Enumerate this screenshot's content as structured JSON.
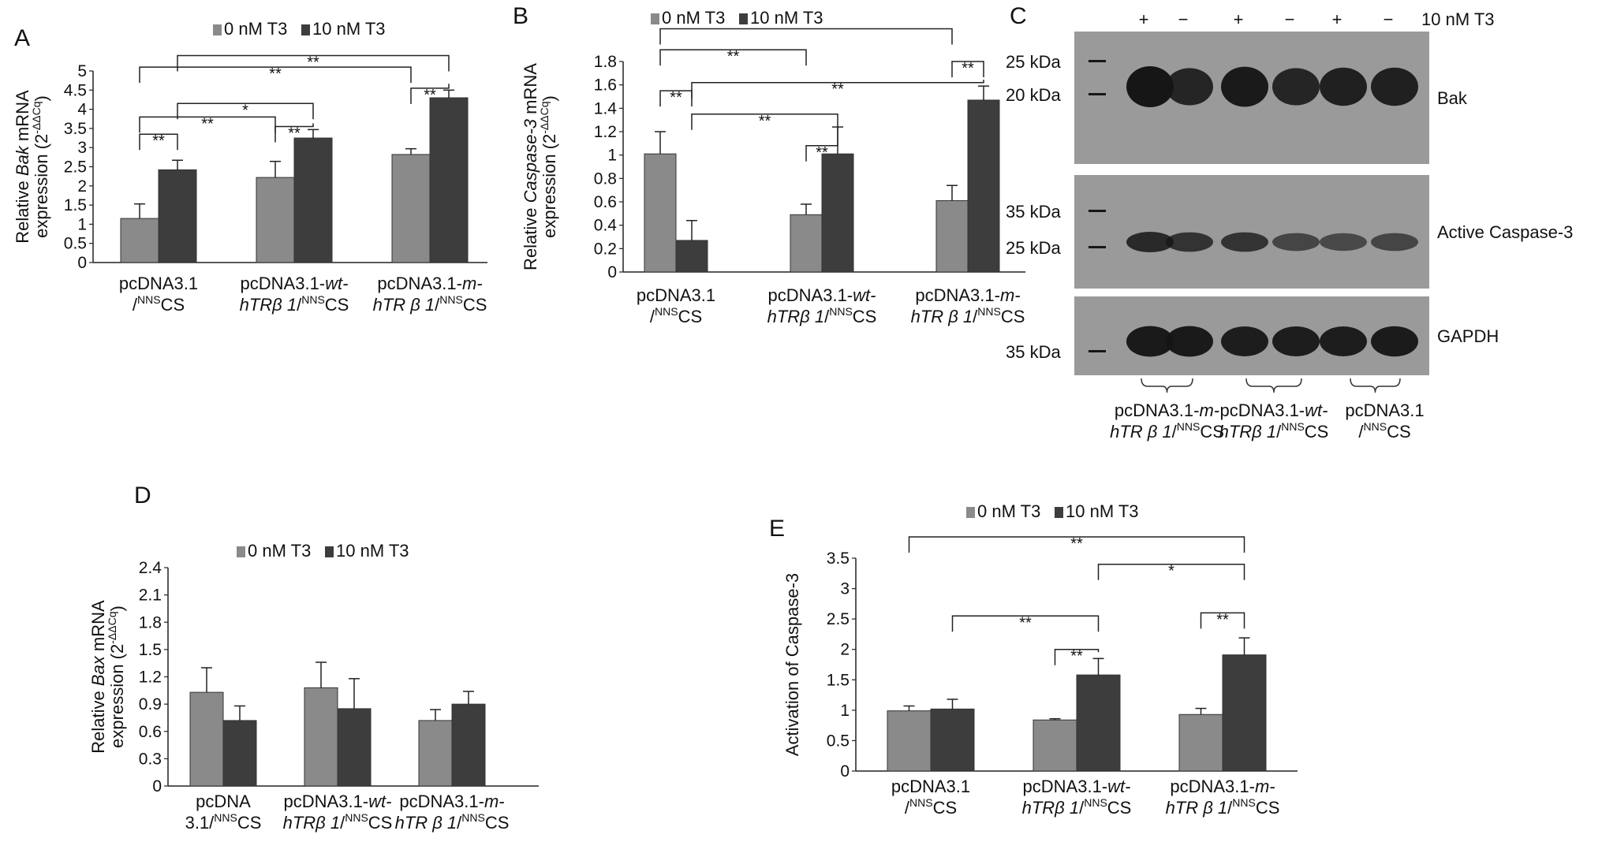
{
  "colors": {
    "control": "#8a8a8a",
    "t3": "#3d3d3d",
    "axis": "#222222",
    "bracket": "#222222",
    "blot_bg": "#9a9a9a",
    "band": "#161616"
  },
  "chart_data": [
    {
      "panel": "A",
      "type": "bar",
      "ylabel_parts": [
        "Relative ",
        "Bak",
        " mRNA"
      ],
      "ylabel_line2": "expression (2",
      "ylabel_sup": "-ΔΔCq",
      "ylabel_end": ")",
      "ylim": [
        0,
        5
      ],
      "yticks": [
        "0",
        "0.5",
        "1",
        "1.5",
        "2",
        "2.5",
        "3",
        "3.5",
        "4",
        "4.5",
        "5"
      ],
      "legend": [
        "0 nM T3",
        "10 nM T3"
      ],
      "categories": [
        {
          "line1": "pcDNA3.1",
          "line2": "/",
          "sup": "NNS",
          "line2_end": "CS"
        },
        {
          "line1": "pcDNA3.1-",
          "line1_it": "wt-",
          "line2_it": "hTRβ 1",
          "line2": "/",
          "sup": "NNS",
          "line2_end": "CS"
        },
        {
          "line1": "pcDNA3.1-",
          "line1_it": "m-",
          "line2_it": "hTR β 1",
          "line2": "/",
          "sup": "NNS",
          "line2_end": "CS"
        }
      ],
      "series": [
        {
          "name": "0 nM T3",
          "values": [
            1.15,
            2.22,
            2.82
          ],
          "errors": [
            0.38,
            0.42,
            0.15
          ]
        },
        {
          "name": "10 nM T3",
          "values": [
            2.42,
            3.25,
            4.3
          ],
          "errors": [
            0.25,
            0.22,
            0.2
          ]
        }
      ],
      "significance": [
        {
          "from": [
            0,
            0
          ],
          "to": [
            0,
            1
          ],
          "label": "**",
          "level": 3.35
        },
        {
          "from": [
            1,
            0
          ],
          "to": [
            1,
            1
          ],
          "label": "**",
          "level": 3.55
        },
        {
          "from": [
            2,
            0
          ],
          "to": [
            2,
            1
          ],
          "label": "**",
          "level": 4.55
        },
        {
          "from": [
            0,
            0
          ],
          "to": [
            1,
            0
          ],
          "label": "**",
          "level": 3.8
        },
        {
          "from": [
            0,
            1
          ],
          "to": [
            1,
            1
          ],
          "label": "*",
          "level": 4.15
        },
        {
          "from": [
            0,
            0
          ],
          "to": [
            2,
            0
          ],
          "label": "**",
          "level": 5.1
        },
        {
          "from": [
            0,
            1
          ],
          "to": [
            2,
            1
          ],
          "label": "**",
          "level": 5.4
        }
      ]
    },
    {
      "panel": "B",
      "type": "bar",
      "ylabel_parts": [
        "Relative ",
        "Caspase-3",
        " mRNA"
      ],
      "ylabel_line2": "expression (2",
      "ylabel_sup": "-ΔΔCq",
      "ylabel_end": ")",
      "ylim": [
        0,
        1.8
      ],
      "yticks": [
        "0",
        "0.2",
        "0.4",
        "0.6",
        "0.8",
        "1",
        "1.2",
        "1.4",
        "1.6",
        "1.8"
      ],
      "legend": [
        "0 nM T3",
        "10 nM T3"
      ],
      "categories": [
        {
          "line1": "pcDNA3.1",
          "line2": "/",
          "sup": "NNS",
          "line2_end": "CS"
        },
        {
          "line1": "pcDNA3.1-",
          "line1_it": "wt-",
          "line2_it": "hTRβ 1",
          "line2": "/",
          "sup": "NNS",
          "line2_end": "CS"
        },
        {
          "line1": "pcDNA3.1-",
          "line1_it": "m-",
          "line2_it": "hTR β 1",
          "line2": "/",
          "sup": "NNS",
          "line2_end": "CS"
        }
      ],
      "series": [
        {
          "name": "0 nM T3",
          "values": [
            1.01,
            0.49,
            0.61
          ],
          "errors": [
            0.19,
            0.09,
            0.13
          ]
        },
        {
          "name": "10 nM T3",
          "values": [
            0.27,
            1.01,
            1.47
          ],
          "errors": [
            0.17,
            0.23,
            0.12
          ]
        }
      ],
      "significance": [
        {
          "from": [
            0,
            0
          ],
          "to": [
            0,
            1
          ],
          "label": "**",
          "level": 1.55
        },
        {
          "from": [
            1,
            0
          ],
          "to": [
            1,
            1
          ],
          "label": "**",
          "level": 1.08
        },
        {
          "from": [
            2,
            0
          ],
          "to": [
            2,
            1
          ],
          "label": "**",
          "level": 1.8
        },
        {
          "from": [
            0,
            0
          ],
          "to": [
            1,
            0
          ],
          "label": "**",
          "level": 1.9
        },
        {
          "from": [
            0,
            1
          ],
          "to": [
            1,
            1
          ],
          "label": "**",
          "level": 1.35
        },
        {
          "from": [
            0,
            1
          ],
          "to": [
            2,
            1
          ],
          "label": "**",
          "level": 1.62
        },
        {
          "from": [
            0,
            0
          ],
          "to": [
            2,
            0
          ],
          "label": "",
          "level": 2.08
        }
      ]
    },
    {
      "panel": "D",
      "type": "bar",
      "ylabel_parts": [
        "Relative ",
        "Bax",
        " mRNA"
      ],
      "ylabel_line2": "expression (2",
      "ylabel_sup": "-ΔΔCq",
      "ylabel_end": ")",
      "ylim": [
        0,
        2.4
      ],
      "yticks": [
        "0",
        "0.3",
        "0.6",
        "0.9",
        "1.2",
        "1.5",
        "1.8",
        "2.1",
        "2.4"
      ],
      "legend": [
        "0 nM T3",
        "10 nM T3"
      ],
      "categories": [
        {
          "line1": "pcDNA",
          "line2": "3.1/",
          "sup": "NNS",
          "line2_end": "CS"
        },
        {
          "line1": "pcDNA3.1-",
          "line1_it": "wt-",
          "line2_it": "hTRβ 1",
          "line2": "/",
          "sup": "NNS",
          "line2_end": "CS"
        },
        {
          "line1": "pcDNA3.1-",
          "line1_it": "m-",
          "line2_it": "hTR β 1",
          "line2": "/",
          "sup": "NNS",
          "line2_end": "CS"
        }
      ],
      "series": [
        {
          "name": "0 nM T3",
          "values": [
            1.03,
            1.08,
            0.72
          ],
          "errors": [
            0.27,
            0.28,
            0.12
          ]
        },
        {
          "name": "10 nM T3",
          "values": [
            0.72,
            0.85,
            0.9
          ],
          "errors": [
            0.16,
            0.33,
            0.14
          ]
        }
      ],
      "significance": []
    },
    {
      "panel": "E",
      "type": "bar",
      "ylabel_parts": [
        "Activation of Caspase-3"
      ],
      "ylabel_line2": "",
      "ylabel_sup": "",
      "ylabel_end": "",
      "ylim": [
        0,
        3.5
      ],
      "yticks": [
        "0",
        "0.5",
        "1",
        "1.5",
        "2",
        "2.5",
        "3",
        "3.5"
      ],
      "legend": [
        "0 nM T3",
        "10 nM T3"
      ],
      "categories": [
        {
          "line1": "pcDNA3.1",
          "line2": "/",
          "sup": "NNS",
          "line2_end": "CS"
        },
        {
          "line1": "pcDNA3.1-",
          "line1_it": "wt-",
          "line2_it": "hTRβ 1",
          "line2": "/",
          "sup": "NNS",
          "line2_end": "CS"
        },
        {
          "line1": "pcDNA3.1-",
          "line1_it": "m-",
          "line2_it": "hTR β 1",
          "line2": "/",
          "sup": "NNS",
          "line2_end": "CS"
        }
      ],
      "series": [
        {
          "name": "0 nM T3",
          "values": [
            0.99,
            0.84,
            0.93
          ],
          "errors": [
            0.08,
            0.02,
            0.1
          ]
        },
        {
          "name": "10 nM T3",
          "values": [
            1.02,
            1.58,
            1.91
          ],
          "errors": [
            0.16,
            0.27,
            0.28
          ]
        }
      ],
      "significance": [
        {
          "from": [
            1,
            0
          ],
          "to": [
            1,
            1
          ],
          "label": "**",
          "level": 2.0
        },
        {
          "from": [
            2,
            0
          ],
          "to": [
            2,
            1
          ],
          "label": "**",
          "level": 2.6
        },
        {
          "from": [
            0,
            1
          ],
          "to": [
            1,
            1
          ],
          "label": "**",
          "level": 2.55
        },
        {
          "from": [
            1,
            1
          ],
          "to": [
            2,
            1
          ],
          "label": "*",
          "level": 3.4
        },
        {
          "from": [
            0,
            0
          ],
          "to": [
            2,
            1
          ],
          "label": "**",
          "level": 3.85
        }
      ]
    }
  ],
  "blot": {
    "panel": "C",
    "treatment_label": "10 nM T3",
    "lane_signs": [
      "+",
      "−",
      "+",
      "−",
      "+",
      "−"
    ],
    "rows": [
      {
        "name": "Bak",
        "markers": [
          "25 kDa",
          "20 kDa"
        ],
        "intensities": [
          1.0,
          0.8,
          0.95,
          0.8,
          0.85,
          0.85
        ]
      },
      {
        "name": "Active Caspase-3",
        "markers": [
          "35 kDa",
          "25 kDa"
        ],
        "intensities": [
          0.75,
          0.6,
          0.6,
          0.35,
          0.3,
          0.35
        ]
      },
      {
        "name": "GAPDH",
        "markers": [
          "35 kDa"
        ],
        "intensities": [
          0.95,
          0.95,
          0.9,
          0.9,
          0.9,
          0.92
        ]
      }
    ],
    "groups": [
      {
        "line1": "pcDNA3.1-",
        "line1_it": "m-",
        "line2_it": "hTR β 1",
        "line2": "/",
        "sup": "NNS",
        "line2_end": "CS"
      },
      {
        "line1": "pcDNA3.1-",
        "line1_it": "wt-",
        "line2_it": "hTRβ 1",
        "line2": "/",
        "sup": "NNS",
        "line2_end": "CS"
      },
      {
        "line1": "pcDNA3.1",
        "line2": "/",
        "sup": "NNS",
        "line2_end": "CS"
      }
    ]
  }
}
